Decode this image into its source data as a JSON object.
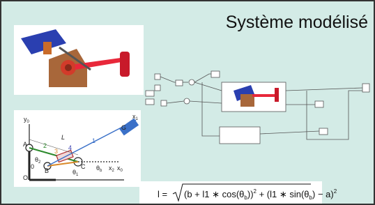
{
  "slide": {
    "title": "Système modélisé",
    "diagram": {
      "labels": [
        {
          "main": "y",
          "sub": "0"
        },
        {
          "main": "A"
        },
        {
          "main": "L"
        },
        {
          "main": "2"
        },
        {
          "main": "3"
        },
        {
          "main": "4"
        },
        {
          "main": "1"
        },
        {
          "main": "G"
        },
        {
          "main": "x",
          "sub": "1"
        },
        {
          "main": "0"
        },
        {
          "main": "B"
        },
        {
          "main": "C"
        },
        {
          "main": "O"
        },
        {
          "main": "x",
          "sub": "0"
        },
        {
          "main": "θ",
          "sub": "2"
        },
        {
          "main": "θ",
          "sub": "b"
        },
        {
          "main": "θ",
          "sub": "1"
        },
        {
          "main": "x",
          "sub": "2"
        }
      ]
    },
    "formula": {
      "lhs": "l =",
      "p1": "(b + l1 ∗ cos(θ",
      "s1": "b",
      "p2": "))",
      "e1": "2",
      "p3": " + (l1 ∗ sin(θ",
      "s2": "b",
      "p4": ") − a)",
      "e2": "2"
    }
  }
}
